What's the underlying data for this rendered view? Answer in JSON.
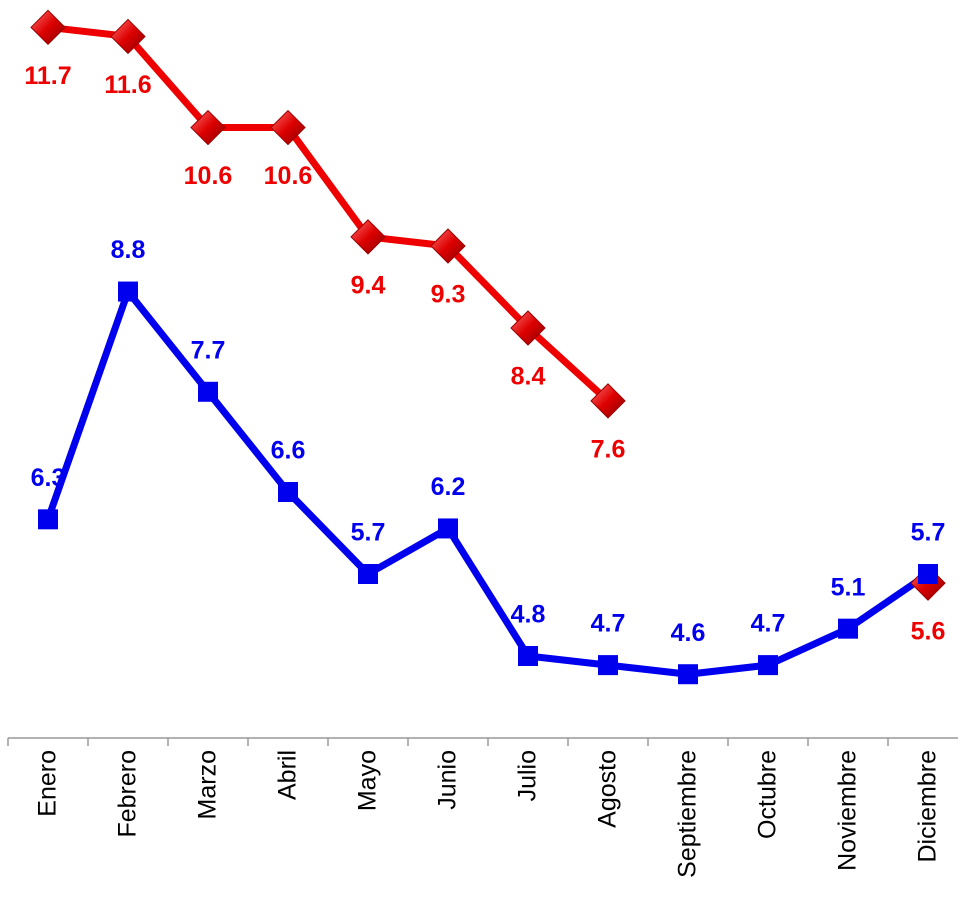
{
  "chart_data": {
    "type": "line",
    "categories": [
      "Enero",
      "Febrero",
      "Marzo",
      "Abril",
      "Mayo",
      "Junio",
      "Julio",
      "Agosto",
      "Septiembre",
      "Octubre",
      "Noviembre",
      "Diciembre"
    ],
    "series": [
      {
        "color": "#ee0000",
        "marker": "diamond",
        "values": [
          11.7,
          11.6,
          10.6,
          10.6,
          9.4,
          9.3,
          8.4,
          7.6,
          null,
          null,
          null,
          5.6
        ]
      },
      {
        "color": "#0000ee",
        "marker": "square",
        "values": [
          6.3,
          8.8,
          7.7,
          6.6,
          5.7,
          6.2,
          4.8,
          4.7,
          4.6,
          4.7,
          5.1,
          5.7
        ]
      }
    ],
    "ylim": [
      3.9,
      12
    ]
  }
}
